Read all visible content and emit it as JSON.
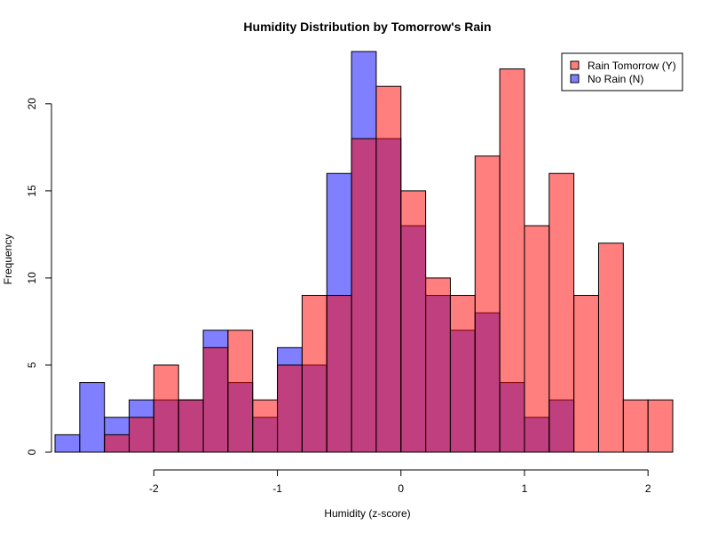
{
  "chart_data": {
    "type": "bar",
    "title": "Humidity Distribution by Tomorrow's Rain",
    "xlabel": "Humidity (z-score)",
    "ylabel": "Frequency",
    "bin_width": 0.2,
    "bin_start": -2.8,
    "xlim": [
      -2.8,
      2.2
    ],
    "ylim": [
      0,
      23
    ],
    "x_ticks": [
      -2,
      -1,
      0,
      1,
      2
    ],
    "y_ticks": [
      0,
      5,
      10,
      15,
      20
    ],
    "series": [
      {
        "name": "No Rain (N)",
        "color": "#0000ff",
        "opacity": 0.5,
        "values": [
          1,
          4,
          2,
          3,
          3,
          3,
          7,
          4,
          2,
          6,
          5,
          16,
          23,
          18,
          13,
          9,
          7,
          8,
          4,
          2,
          3,
          0,
          0,
          0,
          0
        ]
      },
      {
        "name": "Rain Tomorrow (Y)",
        "color": "#ff0000",
        "opacity": 0.5,
        "values": [
          0,
          0,
          1,
          2,
          5,
          3,
          6,
          7,
          3,
          5,
          9,
          9,
          18,
          21,
          15,
          10,
          9,
          17,
          22,
          13,
          16,
          9,
          12,
          3,
          3
        ]
      }
    ],
    "legend": {
      "position": "top-right",
      "entries": [
        "Rain Tomorrow (Y)",
        "No Rain (N)"
      ]
    }
  }
}
